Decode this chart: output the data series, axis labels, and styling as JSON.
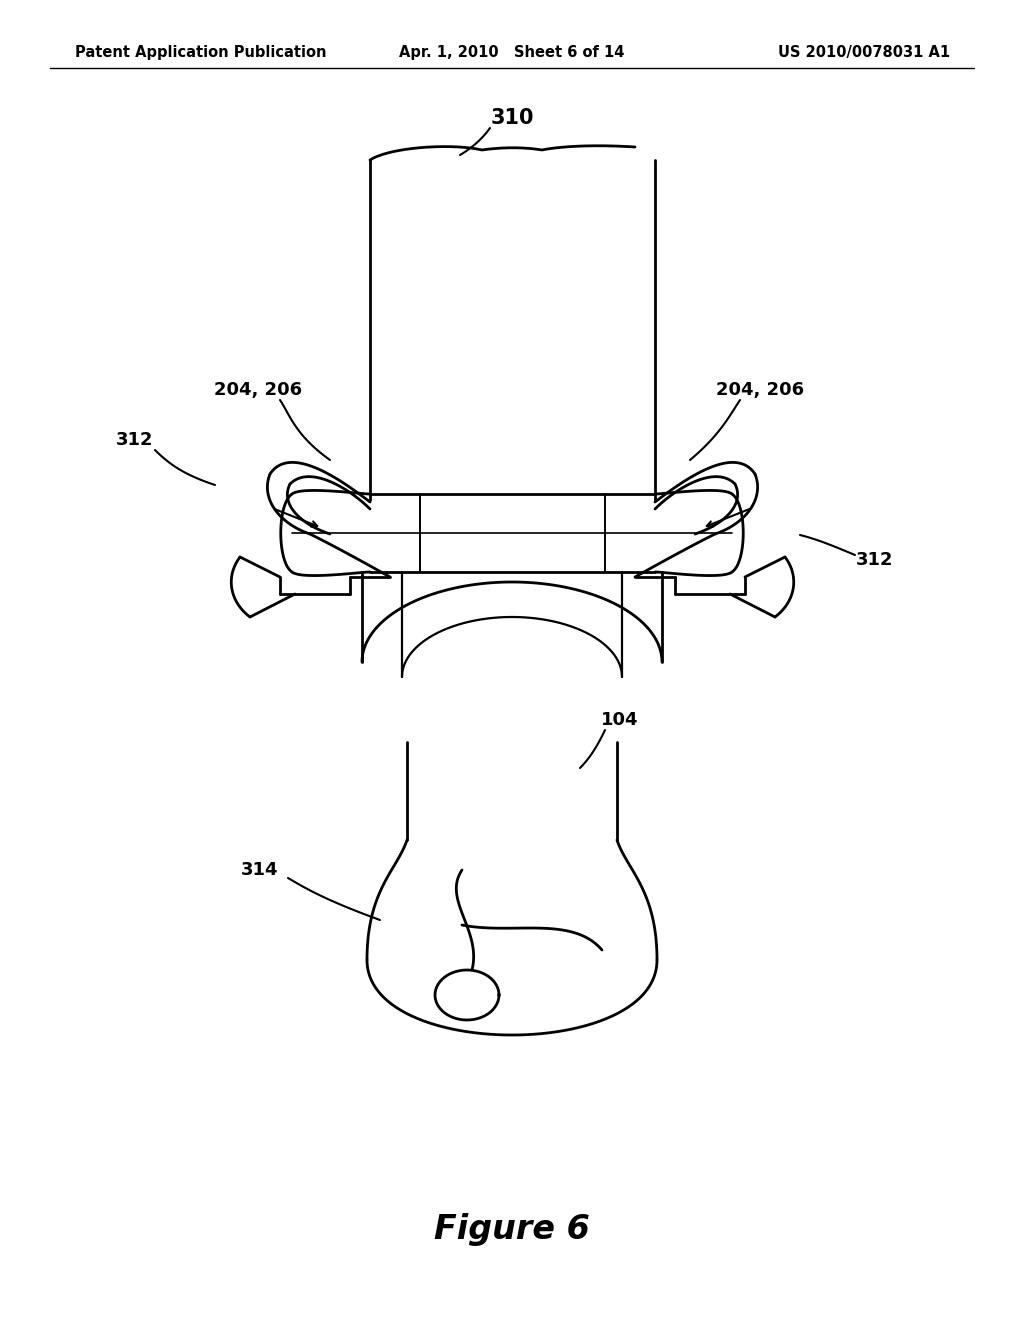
{
  "bg_color": "#ffffff",
  "line_color": "#000000",
  "header_left": "Patent Application Publication",
  "header_center": "Apr. 1, 2010   Sheet 6 of 14",
  "header_right": "US 2010/0078031 A1",
  "figure_label": "Figure 6",
  "header_fontsize": 10.5,
  "label_fontsize": 13,
  "figure_label_fontsize": 24
}
